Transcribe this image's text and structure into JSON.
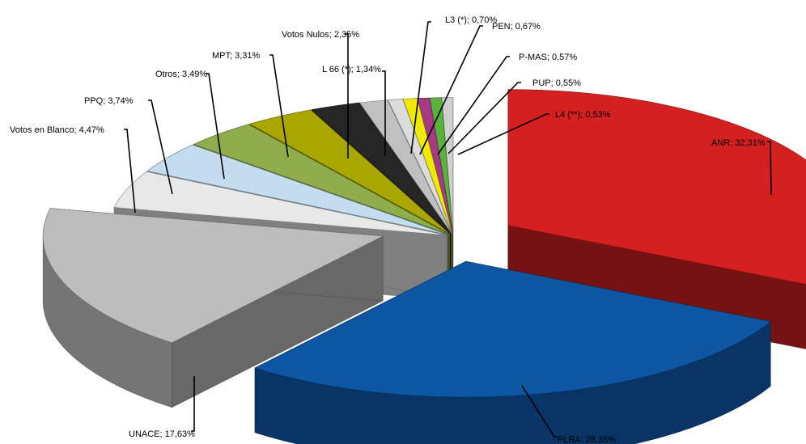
{
  "chart_data": {
    "type": "pie",
    "title": "",
    "legend": "none",
    "slices": [
      {
        "label": "ANR; 32,31%",
        "value": 32.31,
        "color": "#d42020"
      },
      {
        "label": "PLRA: 28.35%",
        "value": 28.35,
        "color": "#0d56a3"
      },
      {
        "label": "UNACE; 17,63%",
        "value": 17.63,
        "color": "#bdbdbd"
      },
      {
        "label": "Votos en Blanco; 4,47%",
        "value": 4.47,
        "color": "#e8e8e8"
      },
      {
        "label": "PPQ; 3,74%",
        "value": 3.74,
        "color": "#c3dcee"
      },
      {
        "label": "Otros; 3,49%",
        "value": 3.49,
        "color": "#8fad4b"
      },
      {
        "label": "MPT; 3,31%",
        "value": 3.31,
        "color": "#aaa600"
      },
      {
        "label": "Votos Nulos; 2,35%",
        "value": 2.35,
        "color": "#262626"
      },
      {
        "label": "L 66 (*); 1,34%",
        "value": 1.34,
        "color": "#c0c0c0"
      },
      {
        "label": "L3 (*); 0,70%",
        "value": 0.7,
        "color": "#dcdcdc"
      },
      {
        "label": "PEN; 0,67%",
        "value": 0.67,
        "color": "#f0ea00"
      },
      {
        "label": "P-MAS; 0,57%",
        "value": 0.57,
        "color": "#a73a86"
      },
      {
        "label": "PUP; 0,55%",
        "value": 0.55,
        "color": "#59b23c"
      },
      {
        "label": "L4 (**); 0,53%",
        "value": 0.53,
        "color": "#d0d0d0"
      }
    ]
  }
}
